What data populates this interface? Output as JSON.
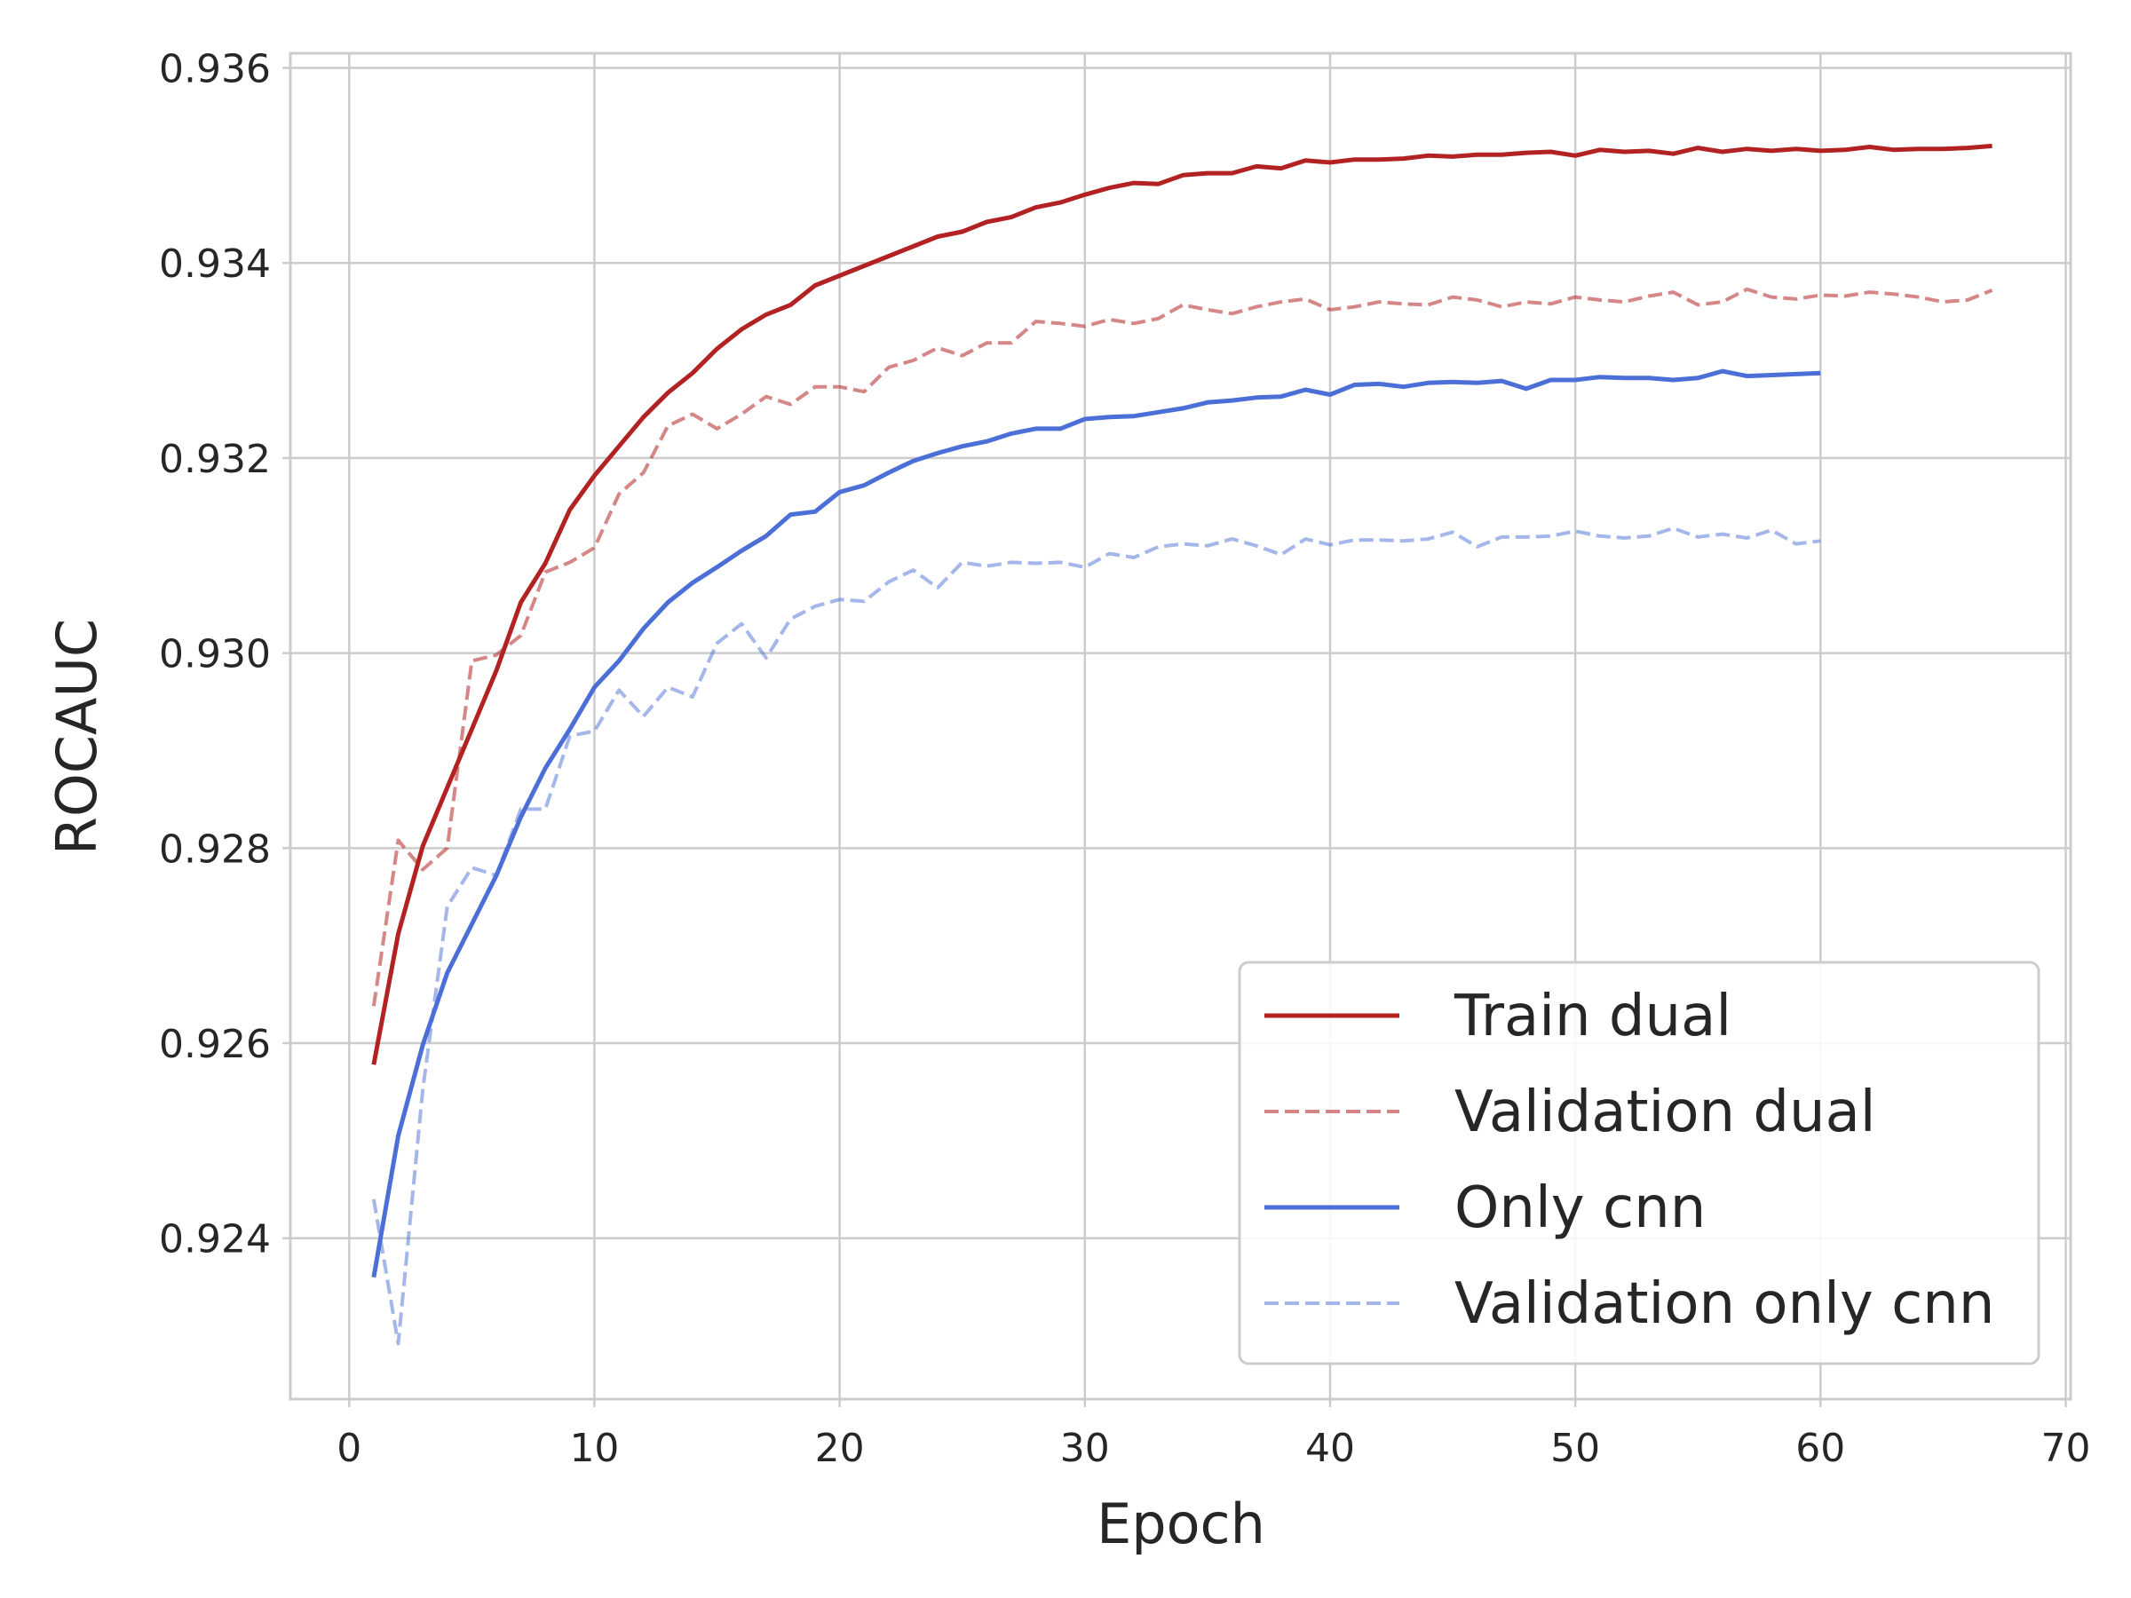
{
  "chart_data": {
    "type": "line",
    "xlabel": "Epoch",
    "ylabel": "ROCAUC",
    "xlim": [
      -2.4,
      70.2
    ],
    "ylim": [
      0.92235,
      0.93615
    ],
    "xticks": [
      0,
      10,
      20,
      30,
      40,
      50,
      60,
      70
    ],
    "yticks": [
      0.924,
      0.926,
      0.928,
      0.93,
      0.932,
      0.934,
      0.936
    ],
    "xtick_labels": [
      "0",
      "10",
      "20",
      "30",
      "40",
      "50",
      "60",
      "70"
    ],
    "ytick_labels": [
      "0.924",
      "0.926",
      "0.928",
      "0.930",
      "0.932",
      "0.934",
      "0.936"
    ],
    "grid": true,
    "legend_position": "lower-right",
    "series": [
      {
        "name": "Train dual",
        "color": "#b22222",
        "dash": "solid",
        "opacity": 1,
        "x_start": 1,
        "values": [
          0.92578,
          0.92712,
          0.92802,
          0.92862,
          0.92922,
          0.92982,
          0.93052,
          0.93092,
          0.93147,
          0.93182,
          0.93212,
          0.93242,
          0.93267,
          0.93287,
          0.93312,
          0.93332,
          0.93347,
          0.93357,
          0.93377,
          0.93387,
          0.93397,
          0.93407,
          0.93417,
          0.93427,
          0.93432,
          0.93442,
          0.93447,
          0.93457,
          0.93462,
          0.9347,
          0.93477,
          0.93482,
          0.93481,
          0.9349,
          0.93492,
          0.93492,
          0.93499,
          0.93497,
          0.93505,
          0.93503,
          0.93506,
          0.93506,
          0.93507,
          0.9351,
          0.93509,
          0.93511,
          0.93511,
          0.93513,
          0.93514,
          0.9351,
          0.93516,
          0.93514,
          0.93515,
          0.93512,
          0.93518,
          0.93514,
          0.93517,
          0.93515,
          0.93517,
          0.93515,
          0.93516,
          0.93519,
          0.93516,
          0.93517,
          0.93517,
          0.93518,
          0.9352
        ]
      },
      {
        "name": "Validation dual",
        "color": "#b22222",
        "dash": "dashed",
        "opacity": 0.55,
        "x_start": 1,
        "values": [
          0.92638,
          0.92808,
          0.92778,
          0.928,
          0.92992,
          0.92998,
          0.93018,
          0.93083,
          0.93093,
          0.93108,
          0.93163,
          0.93185,
          0.93233,
          0.93245,
          0.9323,
          0.93245,
          0.93263,
          0.93255,
          0.93273,
          0.93273,
          0.93268,
          0.93293,
          0.933,
          0.93313,
          0.93305,
          0.93318,
          0.93318,
          0.9334,
          0.93338,
          0.93335,
          0.93342,
          0.93338,
          0.93343,
          0.93357,
          0.93352,
          0.93348,
          0.93355,
          0.9336,
          0.93363,
          0.93352,
          0.93355,
          0.9336,
          0.93358,
          0.93357,
          0.93365,
          0.93362,
          0.93355,
          0.9336,
          0.93358,
          0.93365,
          0.93362,
          0.9336,
          0.93366,
          0.9337,
          0.93357,
          0.9336,
          0.93373,
          0.93365,
          0.93363,
          0.93367,
          0.93366,
          0.9337,
          0.93368,
          0.93365,
          0.9336,
          0.93362,
          0.93372
        ]
      },
      {
        "name": "Only cnn",
        "color": "#4b6fd6",
        "dash": "solid",
        "opacity": 1,
        "x_start": 1,
        "values": [
          0.9236,
          0.92505,
          0.92598,
          0.92672,
          0.92722,
          0.92772,
          0.92832,
          0.92882,
          0.92922,
          0.92965,
          0.92992,
          0.93025,
          0.93052,
          0.93072,
          0.93088,
          0.93105,
          0.9312,
          0.93142,
          0.93145,
          0.93165,
          0.93172,
          0.93185,
          0.93197,
          0.93205,
          0.93212,
          0.93217,
          0.93225,
          0.9323,
          0.9323,
          0.9324,
          0.93242,
          0.93243,
          0.93247,
          0.93251,
          0.93257,
          0.93259,
          0.93262,
          0.93263,
          0.9327,
          0.93265,
          0.93275,
          0.93276,
          0.93273,
          0.93277,
          0.93278,
          0.93277,
          0.93279,
          0.93271,
          0.9328,
          0.9328,
          0.93283,
          0.93282,
          0.93282,
          0.9328,
          0.93282,
          0.93289,
          0.93284,
          0.93285,
          0.93286,
          0.93287
        ]
      },
      {
        "name": "Validation only cnn",
        "color": "#4b6fd6",
        "dash": "dashed",
        "opacity": 0.5,
        "x_start": 1,
        "values": [
          0.9244,
          0.92292,
          0.92552,
          0.9274,
          0.9278,
          0.92772,
          0.9284,
          0.9284,
          0.92915,
          0.9292,
          0.92962,
          0.92935,
          0.92965,
          0.92955,
          0.9301,
          0.9303,
          0.92995,
          0.93035,
          0.93048,
          0.93055,
          0.93053,
          0.93073,
          0.93085,
          0.93067,
          0.93093,
          0.93089,
          0.93093,
          0.93092,
          0.93093,
          0.93088,
          0.93102,
          0.93098,
          0.93109,
          0.93112,
          0.9311,
          0.93117,
          0.9311,
          0.93101,
          0.93117,
          0.93111,
          0.93116,
          0.93116,
          0.93115,
          0.93117,
          0.93124,
          0.93109,
          0.93119,
          0.93119,
          0.9312,
          0.93125,
          0.9312,
          0.93118,
          0.9312,
          0.93128,
          0.93119,
          0.93122,
          0.93118,
          0.93126,
          0.93112,
          0.93115
        ]
      }
    ]
  }
}
